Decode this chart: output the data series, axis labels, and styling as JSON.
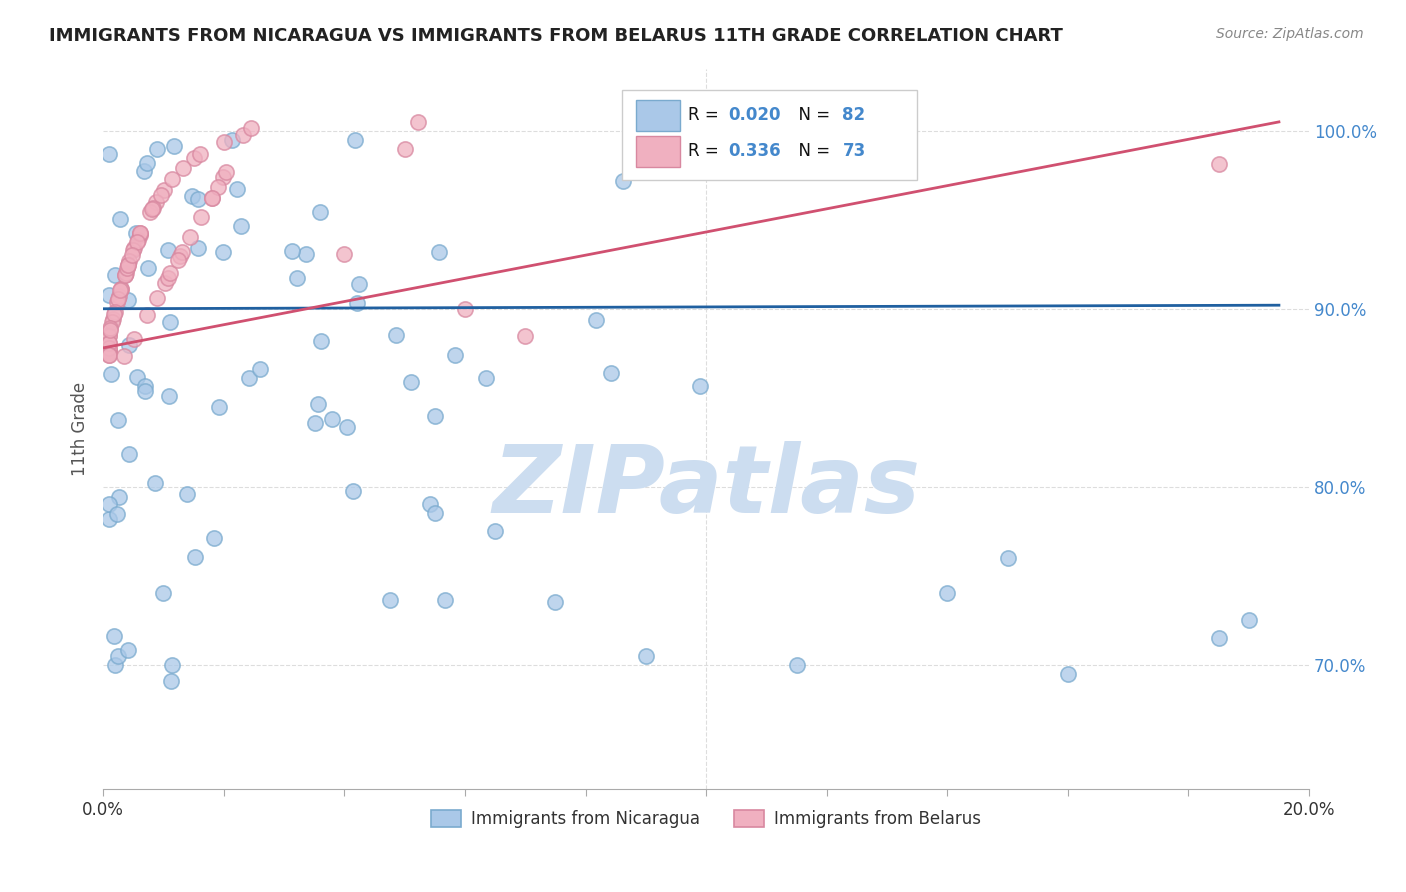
{
  "title": "IMMIGRANTS FROM NICARAGUA VS IMMIGRANTS FROM BELARUS 11TH GRADE CORRELATION CHART",
  "source": "Source: ZipAtlas.com",
  "ylabel": "11th Grade",
  "xlim": [
    0.0,
    0.2
  ],
  "ylim": [
    0.63,
    1.035
  ],
  "ytick_values": [
    0.7,
    0.8,
    0.9,
    1.0
  ],
  "ytick_labels": [
    "70.0%",
    "80.0%",
    "90.0%",
    "100.0%"
  ],
  "color_nicaragua_fill": "#aac8e8",
  "color_nicaragua_edge": "#7aaace",
  "color_belarus_fill": "#f0b0c0",
  "color_belarus_edge": "#d888a0",
  "color_line_nicaragua": "#2060a0",
  "color_line_belarus": "#d05070",
  "color_title": "#222222",
  "color_axis_right": "#4488cc",
  "color_grid": "#dddddd",
  "watermark_text": "ZIPatlas",
  "watermark_color": "#ccddf0",
  "legend_R1": "0.020",
  "legend_N1": "82",
  "legend_R2": "0.336",
  "legend_N2": "73",
  "nic_trend_x": [
    0.0,
    0.195
  ],
  "nic_trend_y": [
    0.9,
    0.902
  ],
  "bel_trend_x": [
    0.0,
    0.195
  ],
  "bel_trend_y": [
    0.878,
    1.005
  ]
}
